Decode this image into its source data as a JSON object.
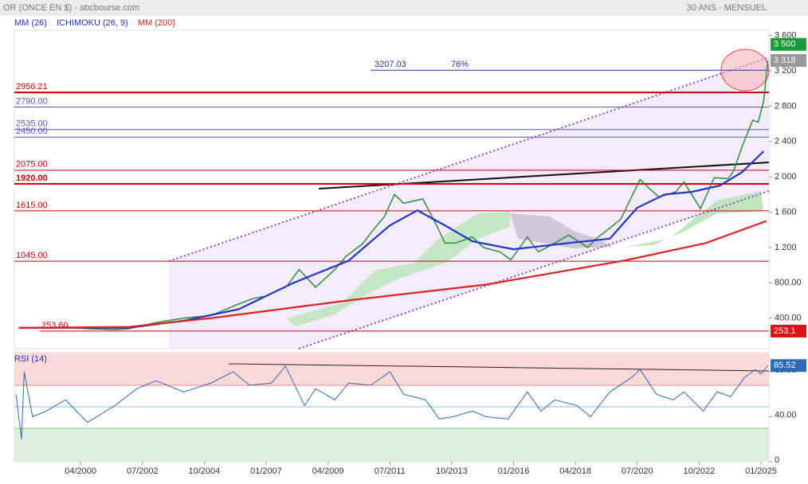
{
  "chart_data": {
    "type": "line",
    "title": "OR (ONCE EN $) - abcbourse.com",
    "subtitle": "30 ANS - MENSUEL",
    "xlim": [
      1997.84,
      2025.29
    ],
    "xticks": [
      {
        "value": 2000.25,
        "label": "04/2000"
      },
      {
        "value": 2002.5,
        "label": "07/2002"
      },
      {
        "value": 2004.75,
        "label": "10/2004"
      },
      {
        "value": 2007.0,
        "label": "01/2007"
      },
      {
        "value": 2009.25,
        "label": "04/2009"
      },
      {
        "value": 2011.5,
        "label": "07/2011"
      },
      {
        "value": 2013.75,
        "label": "10/2013"
      },
      {
        "value": 2016.0,
        "label": "01/2016"
      },
      {
        "value": 2018.25,
        "label": "04/2018"
      },
      {
        "value": 2020.5,
        "label": "07/2020"
      },
      {
        "value": 2022.75,
        "label": "10/2022"
      },
      {
        "value": 2025.0,
        "label": "01/2025"
      }
    ],
    "ylim": [
      54,
      3660
    ],
    "yticks": [
      {
        "value": 3600,
        "label": "3 600"
      },
      {
        "value": 3200,
        "label": "3 200"
      },
      {
        "value": 2800,
        "label": "2 800"
      },
      {
        "value": 2400,
        "label": "2 400"
      },
      {
        "value": 2000,
        "label": "2 000"
      },
      {
        "value": 1600,
        "label": "1 600"
      },
      {
        "value": 1200,
        "label": "1 200"
      },
      {
        "value": 800,
        "label": "800.00"
      },
      {
        "value": 400,
        "label": "400.00"
      }
    ],
    "ichimoku": {
      "name": "ICHIMOKU (26, 9)",
      "color": "#2233bb"
    },
    "series": [
      {
        "color": "#2e8b3e",
        "x": [
          1998.0,
          1999.0,
          1999.75,
          2000.5,
          2001.5,
          2002.0,
          2002.5,
          2003.0,
          2004.0,
          2005.0,
          2006.0,
          2006.5,
          2007.0,
          2007.75,
          2008.2,
          2008.8,
          2009.5,
          2009.9,
          2010.5,
          2010.9,
          2011.3,
          2011.67,
          2012.0,
          2012.7,
          2013.2,
          2013.5,
          2013.9,
          2014.5,
          2014.9,
          2015.5,
          2015.9,
          2016.5,
          2016.9,
          2017.5,
          2018.0,
          2018.7,
          2019.0,
          2019.5,
          2019.9,
          2020.6,
          2020.9,
          2021.3,
          2021.9,
          2022.2,
          2022.8,
          2023.3,
          2023.8,
          2024.0,
          2024.3,
          2024.7,
          2024.9,
          2025.1,
          2025.25
        ],
        "values": [
          290,
          288,
          300,
          280,
          270,
          280,
          315,
          350,
          400,
          430,
          560,
          620,
          650,
          760,
          950,
          750,
          950,
          1100,
          1240,
          1400,
          1550,
          1800,
          1700,
          1750,
          1450,
          1250,
          1250,
          1320,
          1200,
          1150,
          1060,
          1320,
          1150,
          1250,
          1340,
          1200,
          1300,
          1420,
          1520,
          1970,
          1880,
          1770,
          1830,
          1940,
          1640,
          1990,
          1980,
          2060,
          2330,
          2640,
          2620,
          2860,
          3318
        ]
      },
      {
        "name": "MM (26)",
        "color": "#2233cc",
        "x": [
          1998.0,
          2002.0,
          2004.0,
          2006.0,
          2008.0,
          2010.0,
          2011.5,
          2012.5,
          2013.5,
          2014.5,
          2016.0,
          2018.0,
          2019.5,
          2020.5,
          2021.5,
          2022.5,
          2023.5,
          2024.3,
          2024.8,
          2025.1
        ],
        "values": [
          290,
          290,
          370,
          500,
          800,
          1050,
          1450,
          1620,
          1450,
          1270,
          1180,
          1250,
          1300,
          1650,
          1800,
          1830,
          1900,
          2050,
          2200,
          2290
        ]
      },
      {
        "name": "MM (200)",
        "color": "#dd2222",
        "x": [
          1998.0,
          2002.0,
          2005.0,
          2010.0,
          2015.0,
          2020.0,
          2023.0,
          2025.2
        ],
        "values": [
          290,
          300,
          400,
          600,
          780,
          1050,
          1250,
          1500
        ]
      }
    ],
    "levels": [
      {
        "value": 2956.21,
        "label": "2956.21",
        "color": "#cc0000"
      },
      {
        "value": 2790,
        "label": "2790.00",
        "color": "#5555cc"
      },
      {
        "value": 2535,
        "label": "2535.00",
        "color": "#5555cc"
      },
      {
        "value": 2450,
        "label": "2450.00",
        "color": "#5555cc"
      },
      {
        "value": 2075,
        "label": "2075.00",
        "color": "#cc0000"
      },
      {
        "value": 1920,
        "label": "1920.00",
        "color": "#cc0000"
      },
      {
        "value": 1615,
        "label": "1615.00",
        "color": "#cc0000"
      },
      {
        "value": 1045,
        "label": "1045.00",
        "color": "#cc0000"
      },
      {
        "value": 253.6,
        "label": "253.60",
        "color": "#cc0000"
      }
    ],
    "fibo": {
      "value": 3207.03,
      "label": "3207.03",
      "annotation": "76%"
    },
    "price_labels": [
      {
        "value": 3500,
        "label": "3 500",
        "color": "#1a9a3a"
      },
      {
        "value": 3318,
        "label": "3 318",
        "color": "#999999"
      },
      {
        "value": 253.1,
        "label": "253.1",
        "color": "#dd1111"
      }
    ],
    "rsi": {
      "title": "RSI (14)",
      "color": "#2a6ab8",
      "ylim": [
        0,
        97
      ],
      "yticks": [
        {
          "value": 80,
          "label": "80.00"
        },
        {
          "value": 40,
          "label": "40.00"
        },
        0
      ],
      "x": [
        1997.9,
        1998.1,
        1998.2,
        1998.5,
        1999.0,
        1999.7,
        2000.5,
        2001.5,
        2002.3,
        2003.0,
        2004.0,
        2005.0,
        2005.8,
        2006.4,
        2007.2,
        2007.7,
        2008.4,
        2008.8,
        2009.5,
        2010.0,
        2010.8,
        2011.5,
        2012.0,
        2012.8,
        2013.3,
        2013.8,
        2014.5,
        2015.0,
        2015.8,
        2016.5,
        2017.0,
        2017.5,
        2018.3,
        2018.8,
        2019.5,
        2020.3,
        2020.6,
        2021.2,
        2021.8,
        2022.2,
        2022.9,
        2023.4,
        2023.9,
        2024.4,
        2024.8,
        2025.0,
        2025.25
      ],
      "values": [
        60,
        20,
        80,
        40,
        45,
        55,
        35,
        50,
        65,
        72,
        62,
        70,
        80,
        68,
        70,
        85,
        50,
        65,
        55,
        70,
        68,
        80,
        60,
        55,
        38,
        40,
        45,
        40,
        38,
        62,
        45,
        55,
        50,
        40,
        62,
        75,
        82,
        60,
        55,
        62,
        45,
        62,
        58,
        75,
        82,
        78,
        85.52
      ],
      "last": 85.52
    }
  }
}
